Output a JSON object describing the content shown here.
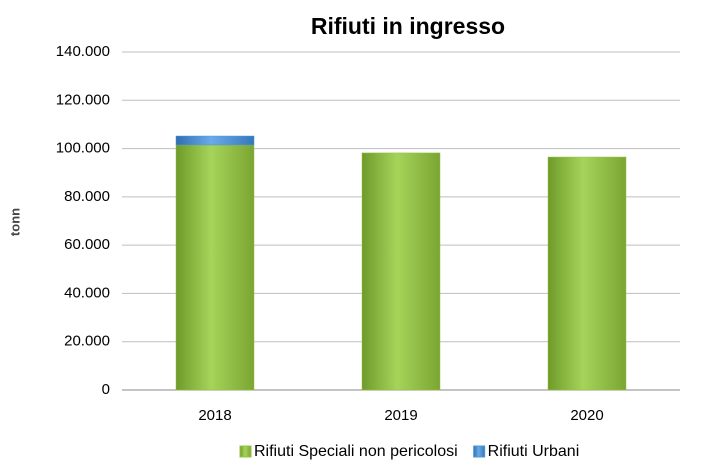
{
  "chart_data": {
    "type": "stacked_bar",
    "title": "Rifiuti in ingresso",
    "y_label": "tonn",
    "categories": [
      "2018",
      "2019",
      "2020"
    ],
    "series": [
      {
        "name": "Rifiuti Speciali non pericolosi",
        "color": "#92c441",
        "values": [
          101500,
          98200,
          96500
        ]
      },
      {
        "name": "Rifiuti Urbani",
        "color": "#4f95d6",
        "values": [
          3700,
          0,
          0
        ]
      }
    ],
    "ylim": [
      0,
      140000
    ],
    "yticks": [
      0,
      {
        "value": 20000,
        "label": "20.000"
      },
      {
        "value": 40000,
        "label": "40.000"
      },
      {
        "value": 60000,
        "label": "60.000"
      },
      {
        "value": 80000,
        "label": "80.000"
      },
      {
        "value": 100000,
        "label": "100.000"
      },
      {
        "value": 120000,
        "label": "120.000"
      },
      {
        "value": 140000,
        "label": "140.000"
      }
    ],
    "grid": true,
    "legend": "bottom"
  }
}
